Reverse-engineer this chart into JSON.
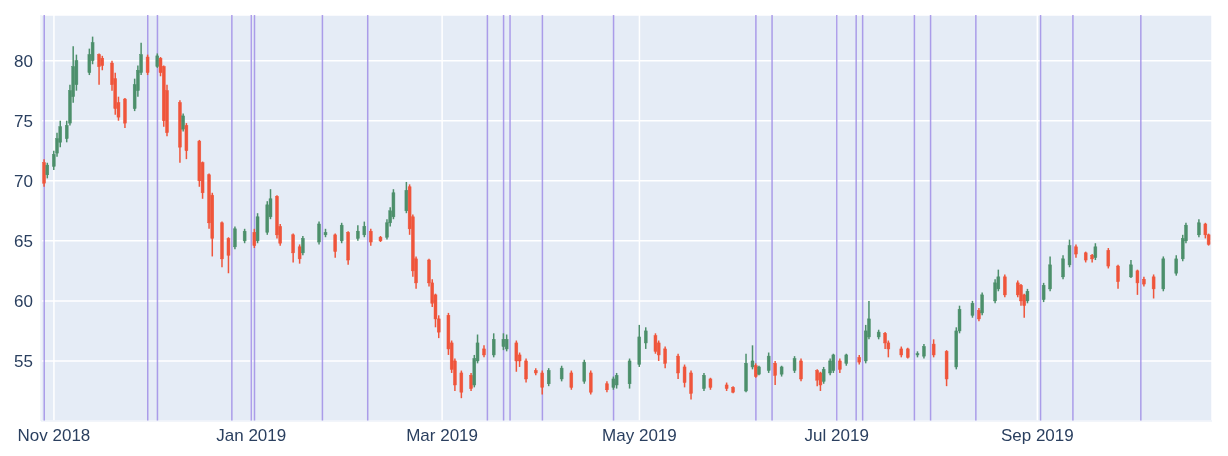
{
  "chart_data": {
    "type": "candlestick",
    "x": [
      "2018-10-29",
      "2018-10-30",
      "2018-11-01",
      "2018-11-02",
      "2018-11-03",
      "2018-11-05",
      "2018-11-06",
      "2018-11-07",
      "2018-11-08",
      "2018-11-12",
      "2018-11-13",
      "2018-11-15",
      "2018-11-16",
      "2018-11-19",
      "2018-11-20",
      "2018-11-21",
      "2018-11-23",
      "2018-11-26",
      "2018-11-27",
      "2018-11-28",
      "2018-11-30",
      "2018-12-03",
      "2018-12-04",
      "2018-12-05",
      "2018-12-06",
      "2018-12-10",
      "2018-12-11",
      "2018-12-12",
      "2018-12-16",
      "2018-12-17",
      "2018-12-19",
      "2018-12-20",
      "2018-12-23",
      "2018-12-25",
      "2018-12-27",
      "2018-12-30",
      "2019-01-02",
      "2019-01-03",
      "2019-01-06",
      "2019-01-07",
      "2019-01-09",
      "2019-01-10",
      "2019-01-14",
      "2019-01-16",
      "2019-01-17",
      "2019-01-22",
      "2019-01-24",
      "2019-01-27",
      "2019-01-29",
      "2019-01-31",
      "2019-02-03",
      "2019-02-05",
      "2019-02-07",
      "2019-02-10",
      "2019-02-12",
      "2019-02-13",
      "2019-02-14",
      "2019-02-18",
      "2019-02-19",
      "2019-02-20",
      "2019-02-21",
      "2019-02-25",
      "2019-02-26",
      "2019-02-27",
      "2019-02-28",
      "2019-03-03",
      "2019-03-04",
      "2019-03-05",
      "2019-03-07",
      "2019-03-10",
      "2019-03-11",
      "2019-03-12",
      "2019-03-14",
      "2019-03-17",
      "2019-03-20",
      "2019-03-21",
      "2019-03-24",
      "2019-03-25",
      "2019-03-27",
      "2019-03-30",
      "2019-04-01",
      "2019-04-03",
      "2019-04-07",
      "2019-04-10",
      "2019-04-14",
      "2019-04-16",
      "2019-04-21",
      "2019-04-23",
      "2019-04-24",
      "2019-04-28",
      "2019-05-01",
      "2019-05-03",
      "2019-05-06",
      "2019-05-07",
      "2019-05-09",
      "2019-05-13",
      "2019-05-15",
      "2019-05-17",
      "2019-05-21",
      "2019-05-23",
      "2019-05-28",
      "2019-05-30",
      "2019-06-03",
      "2019-06-05",
      "2019-06-06",
      "2019-06-07",
      "2019-06-10",
      "2019-06-12",
      "2019-06-14",
      "2019-06-18",
      "2019-06-20",
      "2019-06-25",
      "2019-06-26",
      "2019-06-27",
      "2019-06-29",
      "2019-06-30",
      "2019-07-02",
      "2019-07-04",
      "2019-07-08",
      "2019-07-10",
      "2019-07-11",
      "2019-07-14",
      "2019-07-16",
      "2019-07-17",
      "2019-07-21",
      "2019-07-23",
      "2019-07-26",
      "2019-07-28",
      "2019-07-31",
      "2019-08-04",
      "2019-08-07",
      "2019-08-08",
      "2019-08-12",
      "2019-08-14",
      "2019-08-15",
      "2019-08-19",
      "2019-08-20",
      "2019-08-22",
      "2019-08-26",
      "2019-08-27",
      "2019-08-28",
      "2019-08-29",
      "2019-09-03",
      "2019-09-05",
      "2019-09-09",
      "2019-09-11",
      "2019-09-13",
      "2019-09-16",
      "2019-09-18",
      "2019-09-19",
      "2019-09-23",
      "2019-09-26",
      "2019-09-30",
      "2019-10-02",
      "2019-10-04",
      "2019-10-07",
      "2019-10-10",
      "2019-10-14",
      "2019-10-16",
      "2019-10-17",
      "2019-10-21",
      "2019-10-23",
      "2019-10-24"
    ],
    "ohlc": [
      [
        71.5,
        71.8,
        69.5,
        69.8
      ],
      [
        70.5,
        71.5,
        70.2,
        71.3
      ],
      [
        71.2,
        72.5,
        70.9,
        72.2
      ],
      [
        72.3,
        74,
        72,
        73.5
      ],
      [
        73.2,
        75,
        72.8,
        74.5
      ],
      [
        73.5,
        75,
        73.2,
        74.6
      ],
      [
        74.8,
        78,
        74.6,
        77.5
      ],
      [
        77,
        81.2,
        76.5,
        79.5
      ],
      [
        78,
        80.5,
        77.5,
        80
      ],
      [
        79,
        81,
        78.8,
        80.5
      ],
      [
        80,
        82,
        79.7,
        81.5
      ],
      [
        80.5,
        80.6,
        78,
        79.5
      ],
      [
        80.2,
        80.4,
        79.2,
        79.6
      ],
      [
        79.8,
        80,
        77.5,
        78
      ],
      [
        78.5,
        79,
        75.5,
        76
      ],
      [
        76.5,
        77,
        75,
        75.3
      ],
      [
        76.8,
        76.9,
        74.4,
        74.8
      ],
      [
        76,
        78.5,
        75.8,
        78
      ],
      [
        77.5,
        79.6,
        77,
        79.2
      ],
      [
        79,
        81.5,
        78.8,
        80.5
      ],
      [
        80.3,
        80.5,
        78.8,
        79
      ],
      [
        79.5,
        80.6,
        79.4,
        80.4
      ],
      [
        80.2,
        80.3,
        78.7,
        79
      ],
      [
        79.5,
        79.6,
        74.5,
        75
      ],
      [
        77.5,
        78,
        73.7,
        74
      ],
      [
        76.5,
        76.7,
        71.5,
        72.8
      ],
      [
        74.3,
        75.6,
        74.1,
        75.4
      ],
      [
        74.6,
        74.8,
        71.8,
        72.5
      ],
      [
        73.3,
        73.4,
        69.5,
        70
      ],
      [
        71.5,
        71.6,
        68.5,
        69
      ],
      [
        70.5,
        70.6,
        66,
        66.5
      ],
      [
        68.8,
        69,
        63.7,
        65.2
      ],
      [
        66.5,
        66.6,
        62.8,
        63.5
      ],
      [
        65.2,
        65.3,
        62.3,
        63.8
      ],
      [
        64.5,
        66.2,
        64.3,
        66
      ],
      [
        65,
        66,
        64.8,
        65.8
      ],
      [
        65.7,
        66,
        64.4,
        64.6
      ],
      [
        65,
        67.3,
        64.8,
        67
      ],
      [
        65.7,
        68.3,
        65.5,
        68
      ],
      [
        67,
        69.3,
        66.8,
        68.5
      ],
      [
        68.7,
        68.8,
        65.2,
        65.5
      ],
      [
        66.2,
        66.4,
        64.6,
        64.8
      ],
      [
        65.5,
        65.6,
        63.2,
        64
      ],
      [
        64.5,
        64.7,
        63.1,
        63.5
      ],
      [
        64,
        65.4,
        63.8,
        65.2
      ],
      [
        64.9,
        66.6,
        64.7,
        66.4
      ],
      [
        65.5,
        66,
        65.3,
        65.7
      ],
      [
        65.5,
        65.6,
        63.6,
        64.1
      ],
      [
        65,
        66.5,
        64.8,
        66.3
      ],
      [
        65.7,
        65.8,
        63,
        63.4
      ],
      [
        65.2,
        66.3,
        65,
        65.8
      ],
      [
        65.5,
        66.6,
        65.3,
        66.2
      ],
      [
        65.8,
        66,
        64.6,
        64.9
      ],
      [
        65.3,
        65.4,
        64.9,
        65
      ],
      [
        65.3,
        66.8,
        65.1,
        66.5
      ],
      [
        66.5,
        67.8,
        66.2,
        67.5
      ],
      [
        67,
        69.3,
        66.8,
        69
      ],
      [
        67.5,
        69.9,
        67.3,
        69.2
      ],
      [
        69.5,
        69.7,
        65.5,
        66
      ],
      [
        67,
        67.2,
        62,
        62.5
      ],
      [
        63.5,
        63.7,
        61,
        61.5
      ],
      [
        63.4,
        63.5,
        61.2,
        61.5
      ],
      [
        61.5,
        61.8,
        59.5,
        59.8
      ],
      [
        60.5,
        60.6,
        57.8,
        58.5
      ],
      [
        58.5,
        58.8,
        56.9,
        57.4
      ],
      [
        58.8,
        59,
        55.5,
        56
      ],
      [
        56.5,
        56.7,
        54,
        54.3
      ],
      [
        55,
        55.2,
        52.5,
        53
      ],
      [
        54,
        54.2,
        51.9,
        52.4
      ],
      [
        53.8,
        54,
        52.5,
        52.7
      ],
      [
        53,
        55.5,
        52.8,
        55.2
      ],
      [
        55,
        57.2,
        54.8,
        56.5
      ],
      [
        56,
        56.3,
        55.3,
        55.5
      ],
      [
        55.5,
        57.3,
        55.3,
        56.8
      ],
      [
        56.2,
        57.3,
        55.9,
        56.8
      ],
      [
        56,
        57.2,
        55.8,
        56.8
      ],
      [
        56.5,
        56.7,
        54.1,
        55
      ],
      [
        55.5,
        55.7,
        54.5,
        55
      ],
      [
        55,
        55.2,
        53.2,
        53.5
      ],
      [
        54.2,
        54.4,
        53.8,
        54
      ],
      [
        54,
        54.2,
        52.2,
        52.8
      ],
      [
        53.1,
        54.4,
        52.9,
        54.2
      ],
      [
        53.5,
        54.6,
        53.3,
        54.4
      ],
      [
        54,
        54.2,
        52.6,
        52.8
      ],
      [
        53.3,
        55.1,
        53.1,
        54.9
      ],
      [
        54,
        54.2,
        52.2,
        52.4
      ],
      [
        53.1,
        53.3,
        52.4,
        52.6
      ],
      [
        52.8,
        53.7,
        52.6,
        53.5
      ],
      [
        53,
        54,
        52.7,
        53.8
      ],
      [
        53.1,
        55.2,
        52.7,
        55
      ],
      [
        54.7,
        58,
        54.5,
        57
      ],
      [
        56.5,
        57.8,
        56,
        57.5
      ],
      [
        57.1,
        57.3,
        55.6,
        55.8
      ],
      [
        56.5,
        56.7,
        55,
        55.5
      ],
      [
        56,
        56.2,
        54.4,
        54.8
      ],
      [
        55.4,
        55.6,
        53.5,
        54
      ],
      [
        54.5,
        54.7,
        52.8,
        53.2
      ],
      [
        54,
        54.2,
        51.8,
        52.3
      ],
      [
        52.7,
        54,
        52.5,
        53.8
      ],
      [
        53.5,
        53.6,
        52.6,
        52.8
      ],
      [
        53,
        53.2,
        52.5,
        52.7
      ],
      [
        52.8,
        52.9,
        52.3,
        52.4
      ],
      [
        52.5,
        55.6,
        52.4,
        54.8
      ],
      [
        54.5,
        56.3,
        54.3,
        55
      ],
      [
        54.6,
        54.8,
        53.6,
        53.7
      ],
      [
        53.9,
        54.6,
        53.8,
        54.5
      ],
      [
        54.2,
        55.7,
        54,
        55.4
      ],
      [
        54.8,
        55,
        53,
        53.8
      ],
      [
        53.9,
        54.6,
        53.7,
        54.5
      ],
      [
        54.2,
        55.4,
        54,
        55.2
      ],
      [
        55,
        55.2,
        53.3,
        53.5
      ],
      [
        54.2,
        54.3,
        52.9,
        53.4
      ],
      [
        54,
        54.1,
        52.5,
        53
      ],
      [
        53.3,
        54.5,
        53.1,
        54.3
      ],
      [
        54,
        55.2,
        53.8,
        55
      ],
      [
        54.2,
        55.6,
        54,
        55.5
      ],
      [
        55,
        55.2,
        54,
        54.3
      ],
      [
        54.8,
        55.6,
        54.6,
        55.5
      ],
      [
        55.3,
        55.5,
        54.7,
        54.9
      ],
      [
        55,
        58,
        54.8,
        57.5
      ],
      [
        57,
        60,
        56.8,
        58.5
      ],
      [
        57,
        57.6,
        56.8,
        57.4
      ],
      [
        57.3,
        57.4,
        56,
        56.5
      ],
      [
        56.5,
        56.7,
        55.3,
        56
      ],
      [
        56,
        56.2,
        55.3,
        55.5
      ],
      [
        56,
        56.1,
        55.2,
        55.3
      ],
      [
        55.5,
        55.8,
        55.3,
        55.6
      ],
      [
        55.4,
        56.4,
        55.2,
        56.2
      ],
      [
        56.4,
        56.8,
        55.3,
        55.5
      ],
      [
        55.8,
        55.9,
        52.9,
        53.5
      ],
      [
        54.5,
        57.8,
        54.3,
        57.5
      ],
      [
        57.5,
        59.6,
        57.3,
        59.3
      ],
      [
        58.8,
        60,
        58.6,
        59.8
      ],
      [
        59.2,
        59.4,
        58.3,
        58.5
      ],
      [
        59,
        60.7,
        58.8,
        60.5
      ],
      [
        60,
        61.8,
        59.8,
        61.5
      ],
      [
        61,
        62.6,
        60.8,
        62
      ],
      [
        62,
        62.2,
        60.3,
        60.5
      ],
      [
        61.5,
        61.7,
        60.3,
        60.5
      ],
      [
        61.3,
        61.4,
        59.6,
        60
      ],
      [
        60.5,
        60.6,
        58.6,
        59.6
      ],
      [
        60,
        61,
        59.8,
        60.8
      ],
      [
        60.1,
        61.5,
        59.9,
        61.3
      ],
      [
        61,
        63.7,
        60.8,
        63
      ],
      [
        62,
        63.8,
        61.8,
        63.5
      ],
      [
        63,
        65.1,
        62.8,
        64.6
      ],
      [
        64.5,
        64.7,
        63.6,
        63.9
      ],
      [
        64,
        64.1,
        63.2,
        63.4
      ],
      [
        63.8,
        63.9,
        63.2,
        63.5
      ],
      [
        63.6,
        64.8,
        63.4,
        64.5
      ],
      [
        64.2,
        64.4,
        62.7,
        62.9
      ],
      [
        62.9,
        63,
        61,
        61.6
      ],
      [
        62,
        63.4,
        61.9,
        63
      ],
      [
        62.5,
        62.6,
        60.5,
        61.5
      ],
      [
        61.8,
        62,
        61.2,
        61.4
      ],
      [
        62,
        62.2,
        60.2,
        61
      ],
      [
        61,
        63.7,
        60.8,
        63.5
      ],
      [
        62.3,
        63.8,
        62.1,
        63.5
      ],
      [
        63.5,
        65.5,
        63.3,
        65.2
      ],
      [
        65,
        66.5,
        64.8,
        66.3
      ],
      [
        65.5,
        66.8,
        65.3,
        66.5
      ],
      [
        66.4,
        66.5,
        65.2,
        65.5
      ],
      [
        65.5,
        65.6,
        64.6,
        64.7
      ]
    ],
    "colors": [
      "#ef553b",
      "#4c8f6b",
      "#4c8f6b",
      "#4c8f6b",
      "#4c8f6b",
      "#4c8f6b",
      "#4c8f6b",
      "#4c8f6b",
      "#4c8f6b",
      "#4c8f6b",
      "#4c8f6b",
      "#ef553b",
      "#ef553b",
      "#ef553b",
      "#ef553b",
      "#ef553b",
      "#ef553b",
      "#4c8f6b",
      "#4c8f6b",
      "#4c8f6b",
      "#ef553b",
      "#4c8f6b",
      "#ef553b",
      "#ef553b",
      "#ef553b",
      "#ef553b",
      "#4c8f6b",
      "#ef553b",
      "#ef553b",
      "#ef553b",
      "#ef553b",
      "#ef553b",
      "#ef553b",
      "#ef553b",
      "#4c8f6b",
      "#4c8f6b",
      "#ef553b",
      "#4c8f6b",
      "#4c8f6b",
      "#4c8f6b",
      "#ef553b",
      "#ef553b",
      "#ef553b",
      "#ef553b",
      "#4c8f6b",
      "#4c8f6b",
      "#4c8f6b",
      "#ef553b",
      "#4c8f6b",
      "#ef553b",
      "#4c8f6b",
      "#4c8f6b",
      "#ef553b",
      "#ef553b",
      "#4c8f6b",
      "#4c8f6b",
      "#4c8f6b",
      "#4c8f6b",
      "#ef553b",
      "#ef553b",
      "#ef553b",
      "#ef553b",
      "#ef553b",
      "#ef553b",
      "#ef553b",
      "#ef553b",
      "#ef553b",
      "#ef553b",
      "#ef553b",
      "#ef553b",
      "#4c8f6b",
      "#4c8f6b",
      "#ef553b",
      "#4c8f6b",
      "#4c8f6b",
      "#4c8f6b",
      "#ef553b",
      "#ef553b",
      "#ef553b",
      "#ef553b",
      "#ef553b",
      "#4c8f6b",
      "#4c8f6b",
      "#ef553b",
      "#4c8f6b",
      "#ef553b",
      "#ef553b",
      "#4c8f6b",
      "#4c8f6b",
      "#4c8f6b",
      "#4c8f6b",
      "#4c8f6b",
      "#ef553b",
      "#ef553b",
      "#ef553b",
      "#ef553b",
      "#ef553b",
      "#ef553b",
      "#4c8f6b",
      "#ef553b",
      "#ef553b",
      "#ef553b",
      "#4c8f6b",
      "#4c8f6b",
      "#ef553b",
      "#4c8f6b",
      "#4c8f6b",
      "#ef553b",
      "#4c8f6b",
      "#4c8f6b",
      "#ef553b",
      "#ef553b",
      "#ef553b",
      "#4c8f6b",
      "#4c8f6b",
      "#4c8f6b",
      "#ef553b",
      "#4c8f6b",
      "#ef553b",
      "#4c8f6b",
      "#4c8f6b",
      "#4c8f6b",
      "#ef553b",
      "#ef553b",
      "#ef553b",
      "#ef553b",
      "#4c8f6b",
      "#4c8f6b",
      "#ef553b",
      "#ef553b",
      "#4c8f6b",
      "#4c8f6b",
      "#4c8f6b",
      "#ef553b",
      "#4c8f6b",
      "#4c8f6b",
      "#4c8f6b",
      "#ef553b",
      "#ef553b",
      "#ef553b",
      "#ef553b",
      "#4c8f6b",
      "#4c8f6b",
      "#4c8f6b",
      "#4c8f6b",
      "#4c8f6b",
      "#ef553b",
      "#ef553b",
      "#ef553b",
      "#4c8f6b",
      "#ef553b",
      "#ef553b",
      "#4c8f6b",
      "#ef553b",
      "#ef553b",
      "#ef553b",
      "#4c8f6b",
      "#4c8f6b",
      "#4c8f6b",
      "#4c8f6b",
      "#4c8f6b",
      "#ef553b",
      "#ef553b"
    ],
    "xlim": [
      "2018-10-28",
      "2019-10-25"
    ],
    "xticks": [
      {
        "value": "2018-11-01",
        "label": "Nov 2018"
      },
      {
        "value": "2019-01-01",
        "label": "Jan 2019"
      },
      {
        "value": "2019-03-01",
        "label": "Mar 2019"
      },
      {
        "value": "2019-05-01",
        "label": "May 2019"
      },
      {
        "value": "2019-07-01",
        "label": "Jul 2019"
      },
      {
        "value": "2019-09-01",
        "label": "Sep 2019"
      }
    ],
    "ylim": [
      50,
      83.8
    ],
    "yticks": [
      55,
      60,
      65,
      70,
      75,
      80
    ],
    "grid": true,
    "ref_lines": [
      {
        "axis": "x",
        "value": "2018-10-29",
        "color": "#a08ee6"
      },
      {
        "axis": "x",
        "value": "2018-11-30",
        "color": "#a08ee6"
      },
      {
        "axis": "x",
        "value": "2018-12-03",
        "color": "#a08ee6"
      },
      {
        "axis": "x",
        "value": "2018-12-26",
        "color": "#a08ee6"
      },
      {
        "axis": "x",
        "value": "2019-01-01",
        "color": "#a08ee6"
      },
      {
        "axis": "x",
        "value": "2019-01-02",
        "color": "#a08ee6"
      },
      {
        "axis": "x",
        "value": "2019-01-23",
        "color": "#a08ee6"
      },
      {
        "axis": "x",
        "value": "2019-02-06",
        "color": "#a08ee6"
      },
      {
        "axis": "x",
        "value": "2019-03-15",
        "color": "#a08ee6"
      },
      {
        "axis": "x",
        "value": "2019-03-20",
        "color": "#a08ee6"
      },
      {
        "axis": "x",
        "value": "2019-03-22",
        "color": "#a08ee6"
      },
      {
        "axis": "x",
        "value": "2019-04-01",
        "color": "#a08ee6"
      },
      {
        "axis": "x",
        "value": "2019-04-23",
        "color": "#a08ee6"
      },
      {
        "axis": "x",
        "value": "2019-06-06",
        "color": "#a08ee6"
      },
      {
        "axis": "x",
        "value": "2019-06-11",
        "color": "#a08ee6"
      },
      {
        "axis": "x",
        "value": "2019-07-01",
        "color": "#a08ee6"
      },
      {
        "axis": "x",
        "value": "2019-07-07",
        "color": "#a08ee6"
      },
      {
        "axis": "x",
        "value": "2019-07-09",
        "color": "#a08ee6"
      },
      {
        "axis": "x",
        "value": "2019-07-25",
        "color": "#a08ee6"
      },
      {
        "axis": "x",
        "value": "2019-07-30",
        "color": "#a08ee6"
      },
      {
        "axis": "x",
        "value": "2019-08-13",
        "color": "#a08ee6"
      },
      {
        "axis": "x",
        "value": "2019-09-02",
        "color": "#a08ee6"
      },
      {
        "axis": "x",
        "value": "2019-09-12",
        "color": "#a08ee6"
      },
      {
        "axis": "x",
        "value": "2019-10-03",
        "color": "#a08ee6"
      }
    ]
  }
}
